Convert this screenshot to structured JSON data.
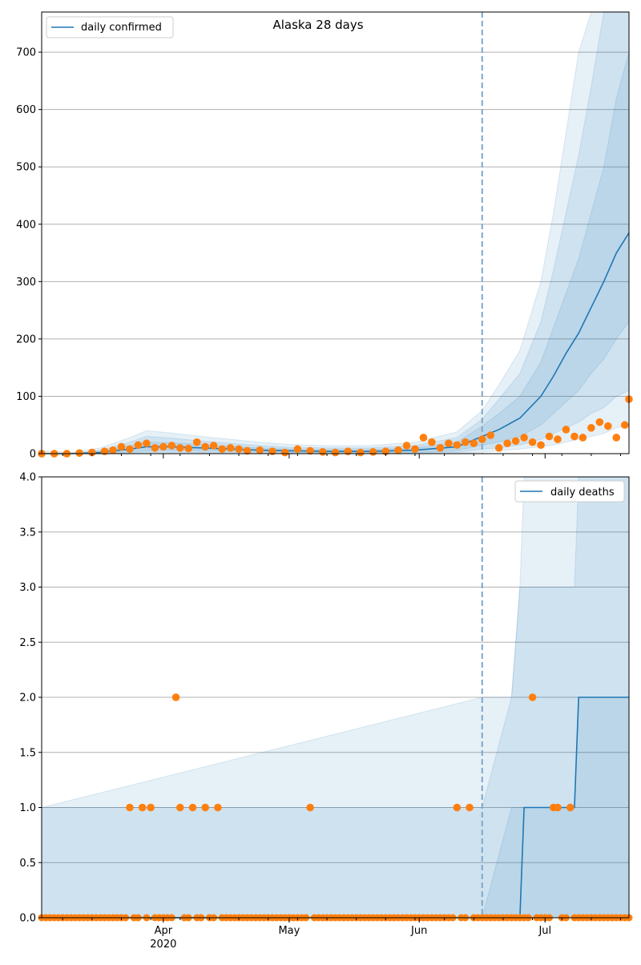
{
  "chart_data": [
    {
      "type": "line",
      "title": "Alaska 28 days",
      "xlabel": "",
      "ylabel": "",
      "ylim": [
        0,
        770
      ],
      "xlim": [
        "2020-03-03",
        "2020-07-21"
      ],
      "grid": "y",
      "legend_position": "top-left",
      "forecast_start": "2020-06-16",
      "yticks": [
        0,
        100,
        200,
        300,
        400,
        500,
        600,
        700
      ],
      "xtick_labels": [
        {
          "date": "2020-04-01",
          "label": "Apr",
          "sublabel": "2020"
        },
        {
          "date": "2020-05-01",
          "label": "May",
          "sublabel": ""
        },
        {
          "date": "2020-06-01",
          "label": "Jun",
          "sublabel": ""
        },
        {
          "date": "2020-07-01",
          "label": "Jul",
          "sublabel": ""
        }
      ],
      "colors": {
        "line": "#1f77b4",
        "points": "#ff7f0e",
        "band": "#1f77b4",
        "vline": "#7fa6c9",
        "grid": "#b0b0b0"
      },
      "model": {
        "name": "daily confirmed",
        "x": [
          "2020-03-03",
          "2020-03-10",
          "2020-03-17",
          "2020-03-24",
          "2020-03-28",
          "2020-04-03",
          "2020-04-10",
          "2020-04-17",
          "2020-04-24",
          "2020-05-01",
          "2020-05-10",
          "2020-05-20",
          "2020-05-31",
          "2020-06-10",
          "2020-06-16",
          "2020-06-20",
          "2020-06-25",
          "2020-06-30",
          "2020-07-03",
          "2020-07-06",
          "2020-07-09",
          "2020-07-12",
          "2020-07-15",
          "2020-07-18",
          "2020-07-21"
        ],
        "median": [
          0,
          0,
          2,
          8,
          12,
          12,
          10,
          8,
          6,
          5,
          4,
          4,
          6,
          12,
          30,
          42,
          62,
          100,
          135,
          175,
          210,
          255,
          300,
          350,
          385
        ],
        "bands": [
          {
            "lower": [
              0,
              0,
              0,
              3,
              5,
              6,
              5,
              4,
              3,
              2,
              2,
              2,
              2,
              5,
              15,
              20,
              30,
              50,
              70,
              90,
              110,
              140,
              165,
              200,
              230
            ],
            "upper": [
              0,
              0,
              4,
              14,
              20,
              19,
              16,
              13,
              10,
              8,
              7,
              7,
              10,
              20,
              48,
              70,
              100,
              160,
              220,
              280,
              340,
              420,
              500,
              620,
              700
            ]
          },
          {
            "lower": [
              0,
              0,
              0,
              1,
              2,
              3,
              2,
              2,
              1,
              1,
              1,
              1,
              1,
              2,
              8,
              10,
              15,
              25,
              35,
              45,
              55,
              70,
              80,
              100,
              110
            ],
            "upper": [
              0,
              0,
              6,
              20,
              30,
              27,
              22,
              18,
              14,
              11,
              10,
              10,
              14,
              28,
              60,
              95,
              140,
              230,
              320,
              420,
              520,
              640,
              770,
              770,
              770
            ]
          },
          {
            "lower": [
              0,
              0,
              0,
              0,
              0,
              1,
              1,
              0,
              0,
              0,
              0,
              0,
              0,
              0,
              3,
              5,
              8,
              12,
              15,
              20,
              25,
              30,
              35,
              45,
              50
            ],
            "upper": [
              5,
              2,
              10,
              28,
              40,
              36,
              30,
              25,
              20,
              16,
              14,
              14,
              20,
              38,
              75,
              120,
              180,
              300,
              420,
              560,
              700,
              770,
              770,
              770,
              770
            ]
          }
        ]
      },
      "observed": {
        "name": "observed",
        "x": [
          "2020-03-03",
          "2020-03-06",
          "2020-03-09",
          "2020-03-12",
          "2020-03-15",
          "2020-03-18",
          "2020-03-20",
          "2020-03-22",
          "2020-03-24",
          "2020-03-26",
          "2020-03-28",
          "2020-03-30",
          "2020-04-01",
          "2020-04-03",
          "2020-04-05",
          "2020-04-07",
          "2020-04-09",
          "2020-04-11",
          "2020-04-13",
          "2020-04-15",
          "2020-04-17",
          "2020-04-19",
          "2020-04-21",
          "2020-04-24",
          "2020-04-27",
          "2020-04-30",
          "2020-05-03",
          "2020-05-06",
          "2020-05-09",
          "2020-05-12",
          "2020-05-15",
          "2020-05-18",
          "2020-05-21",
          "2020-05-24",
          "2020-05-27",
          "2020-05-29",
          "2020-05-31",
          "2020-06-02",
          "2020-06-04",
          "2020-06-06",
          "2020-06-08",
          "2020-06-10",
          "2020-06-12",
          "2020-06-14",
          "2020-06-16",
          "2020-06-18",
          "2020-06-20",
          "2020-06-22",
          "2020-06-24",
          "2020-06-26",
          "2020-06-28",
          "2020-06-30",
          "2020-07-02",
          "2020-07-04",
          "2020-07-06",
          "2020-07-08",
          "2020-07-10",
          "2020-07-12",
          "2020-07-14",
          "2020-07-16",
          "2020-07-18",
          "2020-07-20",
          "2020-07-21"
        ],
        "y": [
          0,
          0,
          0,
          1,
          2,
          4,
          6,
          12,
          8,
          15,
          18,
          10,
          12,
          14,
          10,
          9,
          20,
          12,
          14,
          8,
          10,
          8,
          5,
          6,
          4,
          2,
          8,
          5,
          3,
          2,
          4,
          2,
          3,
          4,
          6,
          14,
          8,
          28,
          20,
          10,
          18,
          15,
          20,
          18,
          25,
          32,
          10,
          18,
          22,
          28,
          20,
          15,
          30,
          25,
          42,
          30,
          28,
          45,
          55,
          48,
          28,
          50,
          95
        ]
      }
    },
    {
      "type": "line",
      "title": "",
      "xlabel": "",
      "ylabel": "",
      "ylim": [
        0,
        4
      ],
      "xlim": [
        "2020-03-03",
        "2020-07-21"
      ],
      "grid": "y",
      "legend_position": "top-right",
      "forecast_start": "2020-06-16",
      "yticks": [
        0,
        0.5,
        1,
        1.5,
        2,
        2.5,
        3,
        3.5,
        4
      ],
      "ytick_labels": [
        "0.0",
        "0.5",
        "1.0",
        "1.5",
        "2.0",
        "2.5",
        "3.0",
        "3.5",
        "4.0"
      ],
      "xtick_labels": [
        {
          "date": "2020-04-01",
          "label": "Apr",
          "sublabel": "2020"
        },
        {
          "date": "2020-05-01",
          "label": "May",
          "sublabel": ""
        },
        {
          "date": "2020-06-01",
          "label": "Jun",
          "sublabel": ""
        },
        {
          "date": "2020-07-01",
          "label": "Jul",
          "sublabel": ""
        }
      ],
      "colors": {
        "line": "#1f77b4",
        "points": "#ff7f0e",
        "band": "#1f77b4",
        "vline": "#7fa6c9",
        "grid": "#b0b0b0"
      },
      "model": {
        "name": "daily deaths",
        "x": [
          "2020-03-03",
          "2020-06-16",
          "2020-06-23",
          "2020-06-25",
          "2020-06-26",
          "2020-07-08",
          "2020-07-09",
          "2020-07-21"
        ],
        "median": [
          0,
          0,
          0,
          0,
          1,
          1,
          2,
          2
        ],
        "bands": [
          {
            "lower": [
              0,
              0,
              0,
              0,
              0,
              0,
              0,
              0
            ],
            "upper": [
              0,
              0,
              1,
              1,
              1,
              1,
              2,
              2
            ]
          },
          {
            "lower": [
              0,
              0,
              0,
              0,
              0,
              0,
              0,
              0
            ],
            "upper": [
              1,
              1,
              2,
              3,
              3,
              3,
              4,
              4
            ]
          },
          {
            "lower": [
              0,
              0,
              0,
              0,
              0,
              0,
              0,
              0
            ],
            "upper": [
              1,
              2,
              2,
              3,
              4,
              4,
              4,
              4
            ]
          }
        ]
      },
      "observed": {
        "name": "observed",
        "x": [
          "2020-03-03",
          "2020-03-24",
          "2020-03-27",
          "2020-03-29",
          "2020-04-04",
          "2020-04-05",
          "2020-04-08",
          "2020-04-11",
          "2020-04-14",
          "2020-05-06",
          "2020-06-10",
          "2020-06-13",
          "2020-06-28",
          "2020-07-03",
          "2020-07-04",
          "2020-07-07"
        ],
        "y": [
          0,
          1,
          1,
          1,
          2,
          1,
          1,
          1,
          1,
          1,
          1,
          1,
          2,
          1,
          1,
          1
        ],
        "zero_run": [
          "2020-03-03",
          "2020-07-21"
        ]
      }
    }
  ]
}
